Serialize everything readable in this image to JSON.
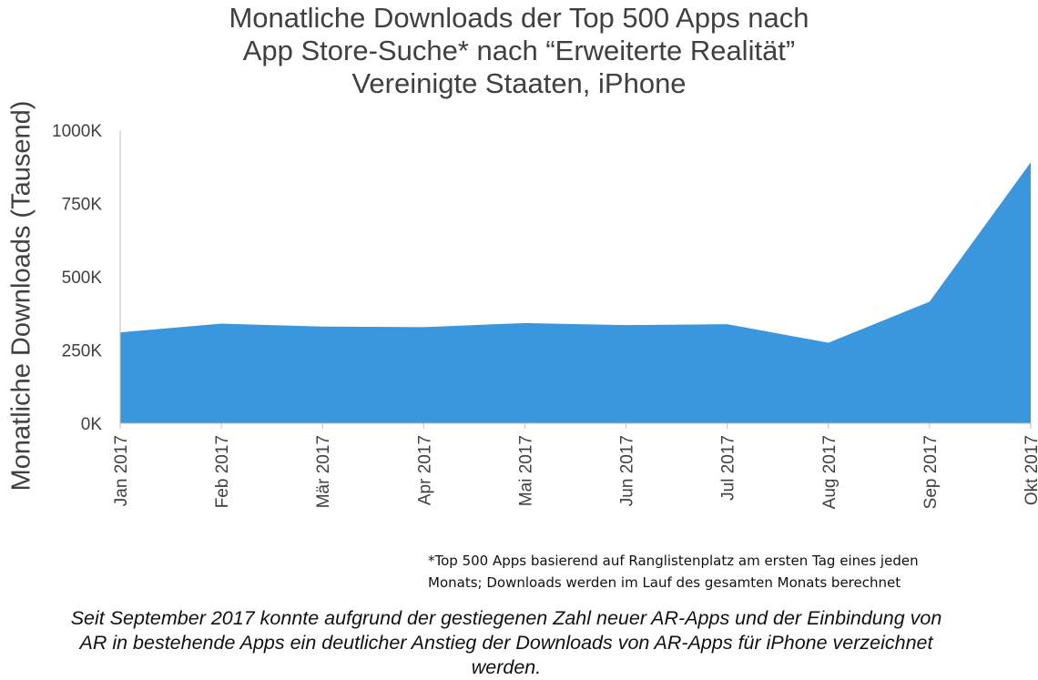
{
  "chart_data": {
    "type": "area",
    "title_lines": [
      "Monatliche Downloads der Top 500 Apps nach",
      "App Store-Suche* nach “Erweiterte Realität”",
      "Vereinigte Staaten, iPhone"
    ],
    "ylabel": "Monatliche Downloads (Tausend)",
    "xlabel": "",
    "categories": [
      "Jan 2017",
      "Feb 2017",
      "Mär 2017",
      "Apr 2017",
      "Mai 2017",
      "Jun 2017",
      "Jul 2017",
      "Aug 2017",
      "Sep 2017",
      "Okt 2017"
    ],
    "series": [
      {
        "name": "",
        "values": [
          310,
          340,
          330,
          328,
          342,
          335,
          338,
          275,
          415,
          890
        ]
      }
    ],
    "ylim": [
      0,
      1000
    ],
    "yticks": [
      0,
      250,
      500,
      750,
      1000
    ],
    "ytick_labels": [
      "0K",
      "250K",
      "500K",
      "750K",
      "1000K"
    ],
    "grid": false,
    "fill_color": "#3a97dd",
    "axis_color": "#bfbfbf"
  },
  "footnote": {
    "line1": "*Top 500 Apps basierend auf Ranglistenplatz am ersten Tag eines jeden",
    "line2": "Monats; Downloads werden im Lauf des gesamten Monats berechnet"
  },
  "caption": {
    "line1": "Seit September 2017 konnte aufgrund der gestiegenen Zahl neuer AR-Apps und der Einbindung von",
    "line2": "AR in bestehende Apps ein deutlicher Anstieg der Downloads von AR-Apps für iPhone verzeichnet",
    "line3": "werden."
  }
}
